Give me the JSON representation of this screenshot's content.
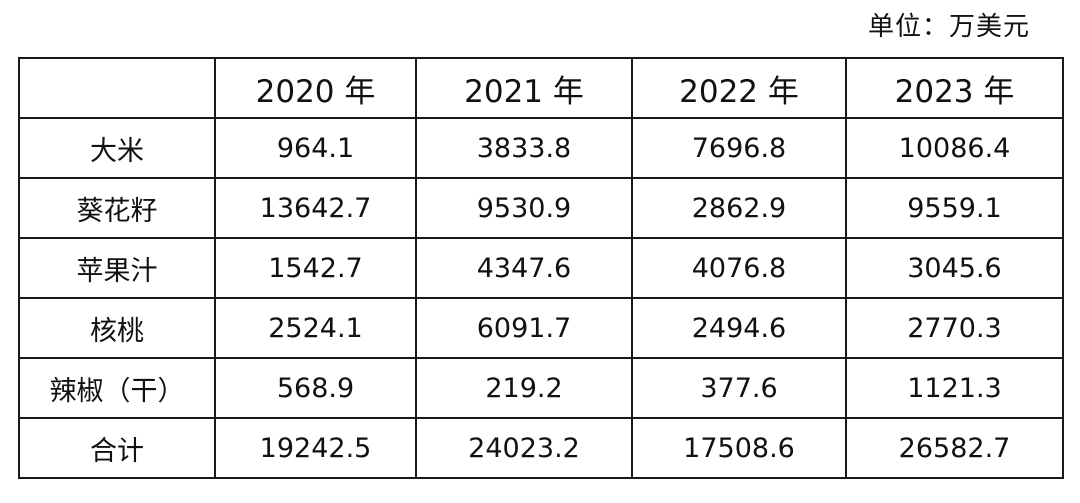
{
  "unit_label": "单位：万美元",
  "table": {
    "corner": "",
    "columns": [
      "2020 年",
      "2021 年",
      "2022 年",
      "2023 年"
    ],
    "rows": [
      {
        "label": "大米",
        "values": [
          "964.1",
          "3833.8",
          "7696.8",
          "10086.4"
        ]
      },
      {
        "label": "葵花籽",
        "values": [
          "13642.7",
          "9530.9",
          "2862.9",
          "9559.1"
        ]
      },
      {
        "label": "苹果汁",
        "values": [
          "1542.7",
          "4347.6",
          "4076.8",
          "3045.6"
        ]
      },
      {
        "label": "核桃",
        "values": [
          "2524.1",
          "6091.7",
          "2494.6",
          "2770.3"
        ]
      },
      {
        "label": "辣椒（干）",
        "values": [
          "568.9",
          "219.2",
          "377.6",
          "1121.3"
        ]
      },
      {
        "label": "合计",
        "values": [
          "19242.5",
          "24023.2",
          "17508.6",
          "26582.7"
        ]
      }
    ]
  }
}
